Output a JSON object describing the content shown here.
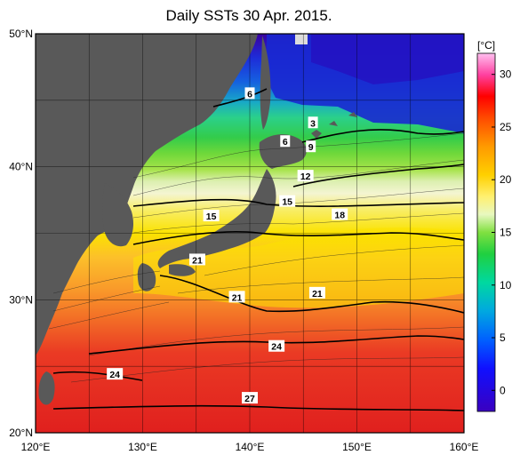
{
  "title": "Daily SSTs 30 Apr. 2015.",
  "unit_label": "[°C]",
  "colorbar": {
    "ticks": [
      "30",
      "25",
      "20",
      "15",
      "10",
      "5",
      "0"
    ],
    "tick_values": [
      30,
      25,
      20,
      15,
      10,
      5,
      0
    ],
    "min": -2,
    "max": 32
  },
  "axes": {
    "lat_labels": [
      "50°N",
      "40°N",
      "30°N",
      "20°N"
    ],
    "lat_values": [
      50,
      40,
      30,
      20
    ],
    "lon_labels": [
      "120°E",
      "130°E",
      "140°E",
      "150°E",
      "160°E"
    ],
    "lon_values": [
      120,
      130,
      140,
      150,
      160
    ],
    "lon_range": [
      120,
      160
    ],
    "lat_range": [
      20,
      50
    ]
  },
  "contour_labels": [
    {
      "text": "6",
      "lon": 140,
      "lat": 45.5
    },
    {
      "text": "3",
      "lon": 145.9,
      "lat": 43.3
    },
    {
      "text": "6",
      "lon": 143.3,
      "lat": 41.9
    },
    {
      "text": "9",
      "lon": 145.7,
      "lat": 41.5
    },
    {
      "text": "12",
      "lon": 145.2,
      "lat": 39.3
    },
    {
      "text": "15",
      "lon": 143.5,
      "lat": 37.4
    },
    {
      "text": "15",
      "lon": 136.4,
      "lat": 36.3
    },
    {
      "text": "18",
      "lon": 148.4,
      "lat": 36.4
    },
    {
      "text": "21",
      "lon": 135.1,
      "lat": 33.0
    },
    {
      "text": "21",
      "lon": 138.8,
      "lat": 30.2
    },
    {
      "text": "21",
      "lon": 146.3,
      "lat": 30.5
    },
    {
      "text": "24",
      "lon": 142.5,
      "lat": 26.5
    },
    {
      "text": "24",
      "lon": 127.4,
      "lat": 24.4
    },
    {
      "text": "27",
      "lon": 140.0,
      "lat": 22.6
    }
  ],
  "colors": {
    "land": "#595959",
    "ice": "#dcdcdc"
  }
}
